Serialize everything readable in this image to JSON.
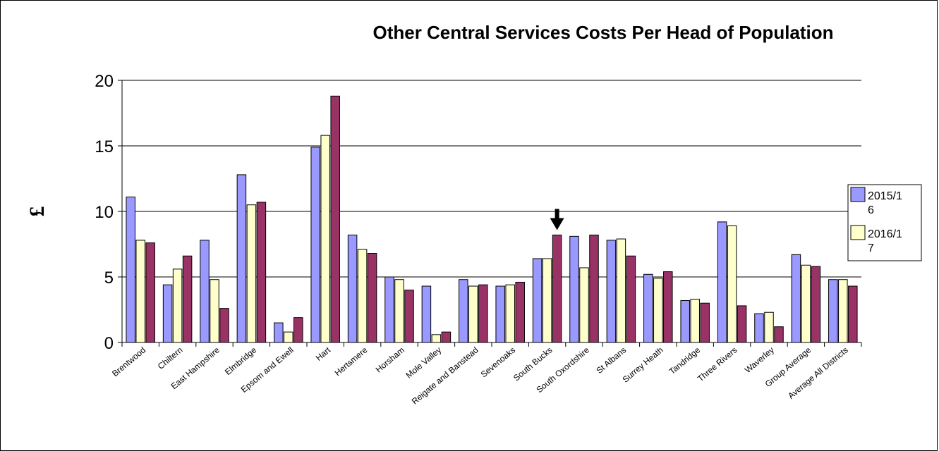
{
  "chart_data": {
    "type": "bar",
    "title": "Other Central Services Costs Per Head of Population",
    "ylabel": "£",
    "xlabel": "",
    "ylim": [
      0,
      20
    ],
    "yticks": [
      0,
      5,
      10,
      15,
      20
    ],
    "grid": true,
    "legend_position": "right",
    "categories": [
      "Brentwood",
      "Chiltern",
      "East Hampshire",
      "Elmbridge",
      "Epsom and Ewell",
      "Hart",
      "Hertsmere",
      "Horsham",
      "Mole Valley",
      "Reigate and Banstead",
      "Sevenoaks",
      "South Bucks",
      "South Oxordshire",
      "St Albans",
      "Surrey Heath",
      "Tandridge",
      "Three Rivers",
      "Waverley",
      "Group Average",
      "Average All Districts"
    ],
    "series": [
      {
        "name": "2015/16",
        "legend_lines": [
          "2015/1",
          "6"
        ],
        "color": "#9999ff",
        "values": [
          11.1,
          4.4,
          7.8,
          12.8,
          1.5,
          14.9,
          8.2,
          5.0,
          4.3,
          4.8,
          4.3,
          6.4,
          8.1,
          7.8,
          5.2,
          3.2,
          9.2,
          2.2,
          6.7,
          4.8
        ]
      },
      {
        "name": "2016/17",
        "legend_lines": [
          "2016/1",
          "7"
        ],
        "color": "#ffffcc",
        "values": [
          7.8,
          5.6,
          4.8,
          10.5,
          0.8,
          15.8,
          7.1,
          4.8,
          0.6,
          4.3,
          4.4,
          6.4,
          5.7,
          7.9,
          4.9,
          3.3,
          8.9,
          2.3,
          5.9,
          4.8
        ]
      },
      {
        "name": "",
        "legend_lines": [],
        "color": "#993366",
        "values": [
          7.6,
          6.6,
          2.6,
          10.7,
          1.9,
          18.8,
          6.8,
          4.0,
          0.8,
          4.4,
          4.6,
          8.2,
          8.2,
          6.6,
          5.4,
          3.0,
          2.8,
          1.2,
          5.8,
          4.3
        ]
      }
    ],
    "annotations": [
      {
        "type": "arrow",
        "category": "South Bucks",
        "series_index": 2
      }
    ]
  }
}
